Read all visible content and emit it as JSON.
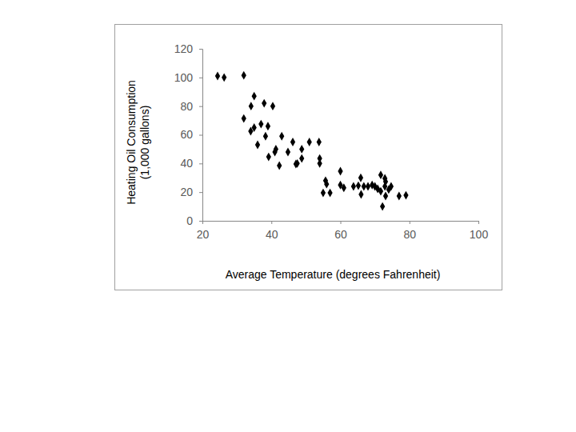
{
  "chart_data": {
    "type": "scatter",
    "xlabel": "Average Temperature (degrees Fahrenheit)",
    "ylabel": [
      "Heating Oil Consumption",
      "(1,000 gallons)"
    ],
    "x": [
      24.4,
      26.3,
      32,
      32,
      35,
      34.1,
      37.9,
      40.4,
      34,
      35,
      37,
      39,
      36,
      38.3,
      39.2,
      41.3,
      41,
      42.3,
      43,
      44.8,
      46.2,
      47.1,
      47.5,
      48.8,
      48.8,
      51,
      53.8,
      54,
      54,
      55,
      55.7,
      56,
      57,
      60,
      60,
      61,
      63.8,
      65.2,
      65.9,
      66,
      66.8,
      68,
      69.2,
      70,
      70.8,
      71.7,
      71.7,
      72.2,
      72.9,
      73.1,
      73.1,
      72.9,
      74,
      74.7,
      77,
      79
    ],
    "y": [
      101,
      100,
      101.5,
      71.4,
      87,
      80,
      82,
      80,
      62.5,
      65,
      67.5,
      66,
      53,
      59,
      44.6,
      50,
      48,
      38.5,
      59,
      48,
      55,
      39.6,
      40,
      50,
      43.5,
      55,
      55,
      43.5,
      40,
      19.5,
      28,
      25.6,
      19.5,
      34.6,
      25,
      23,
      24,
      24.5,
      30,
      18.4,
      24,
      24,
      25,
      24,
      22.3,
      32,
      20.6,
      10,
      29.6,
      27.3,
      17.3,
      24,
      21.8,
      24,
      17.3,
      17.8
    ],
    "xlim": [
      20,
      100
    ],
    "xticks": [
      20,
      40,
      60,
      80,
      100
    ],
    "ylim": [
      0,
      120
    ],
    "yticks": [
      0,
      20,
      40,
      60,
      80,
      100,
      120
    ],
    "color": "#000000",
    "marker": "diamond",
    "grid": false
  }
}
